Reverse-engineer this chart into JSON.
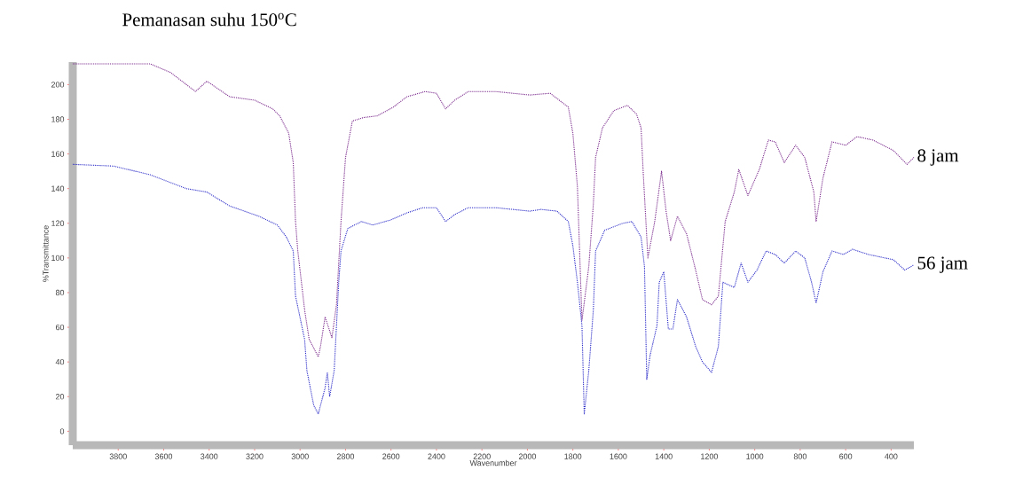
{
  "chart_data": {
    "type": "line",
    "title": "Pemanasan suhu 150$^{o}$C",
    "xlabel": "Wavenumber",
    "ylabel": "%Transmittance",
    "xlim": [
      4000,
      300
    ],
    "ylim": [
      -8,
      213
    ],
    "xticks": [
      3800,
      3600,
      3400,
      3200,
      3000,
      2800,
      2600,
      2400,
      2200,
      2000,
      1800,
      1600,
      1400,
      1200,
      1000,
      800,
      600,
      400
    ],
    "yticks": [
      0,
      20,
      40,
      60,
      80,
      100,
      120,
      140,
      160,
      180,
      200
    ],
    "line_style": "dotted",
    "series": [
      {
        "name": "8 jam",
        "color": "#7a2a8c",
        "x": [
          4000,
          3660,
          3570,
          3460,
          3410,
          3310,
          3200,
          3120,
          3090,
          3050,
          3030,
          3020,
          3010,
          2980,
          2960,
          2920,
          2910,
          2890,
          2860,
          2840,
          2820,
          2800,
          2770,
          2720,
          2660,
          2590,
          2530,
          2450,
          2400,
          2360,
          2320,
          2260,
          2140,
          1990,
          1900,
          1820,
          1800,
          1780,
          1760,
          1730,
          1710,
          1700,
          1670,
          1620,
          1560,
          1520,
          1500,
          1490,
          1470,
          1440,
          1410,
          1390,
          1370,
          1340,
          1300,
          1260,
          1230,
          1190,
          1160,
          1130,
          1090,
          1070,
          1030,
          980,
          940,
          910,
          870,
          820,
          780,
          740,
          730,
          700,
          660,
          600,
          550,
          480,
          390,
          330,
          300
        ],
        "values": [
          212,
          212,
          207,
          196,
          202,
          193,
          191,
          186,
          182,
          172,
          155,
          121,
          104,
          70,
          53,
          43,
          49,
          66,
          54,
          73,
          121,
          158,
          179,
          181,
          182,
          187,
          193,
          196,
          195,
          186,
          191,
          196,
          196,
          194,
          195,
          187,
          172,
          141,
          64,
          95,
          131,
          158,
          175,
          185,
          188,
          183,
          175,
          148,
          100,
          121,
          150,
          127,
          110,
          124,
          114,
          93,
          76,
          73,
          78,
          121,
          138,
          151,
          136,
          151,
          168,
          167,
          155,
          165,
          158,
          138,
          121,
          146,
          167,
          165,
          170,
          168,
          162,
          154,
          158
        ]
      },
      {
        "name": "56 jam",
        "color": "#2a2ac8",
        "x": [
          4000,
          3820,
          3660,
          3500,
          3410,
          3310,
          3180,
          3100,
          3060,
          3030,
          3020,
          2980,
          2970,
          2940,
          2920,
          2890,
          2880,
          2870,
          2850,
          2830,
          2820,
          2790,
          2730,
          2680,
          2600,
          2530,
          2460,
          2400,
          2360,
          2320,
          2260,
          2140,
          1990,
          1940,
          1870,
          1820,
          1800,
          1780,
          1760,
          1750,
          1730,
          1710,
          1700,
          1660,
          1580,
          1540,
          1500,
          1485,
          1475,
          1460,
          1430,
          1420,
          1400,
          1380,
          1360,
          1340,
          1300,
          1260,
          1230,
          1190,
          1160,
          1140,
          1090,
          1060,
          1030,
          990,
          950,
          910,
          870,
          820,
          780,
          750,
          730,
          700,
          660,
          610,
          570,
          500,
          390,
          340,
          300
        ],
        "values": [
          154,
          153,
          148,
          140,
          138,
          130,
          124,
          119,
          112,
          104,
          78,
          53,
          35,
          15,
          10,
          25,
          34,
          20,
          35,
          86,
          104,
          117,
          121,
          119,
          122,
          126,
          129,
          129,
          121,
          125,
          129,
          129,
          127,
          128,
          127,
          121,
          107,
          86,
          61,
          10,
          35,
          70,
          104,
          116,
          120,
          121,
          112,
          95,
          30,
          44,
          61,
          86,
          92,
          59,
          59,
          76,
          66,
          49,
          40,
          34,
          49,
          86,
          83,
          97,
          86,
          93,
          104,
          102,
          97,
          104,
          100,
          86,
          74,
          92,
          104,
          102,
          105,
          102,
          99,
          93,
          96
        ]
      }
    ]
  }
}
